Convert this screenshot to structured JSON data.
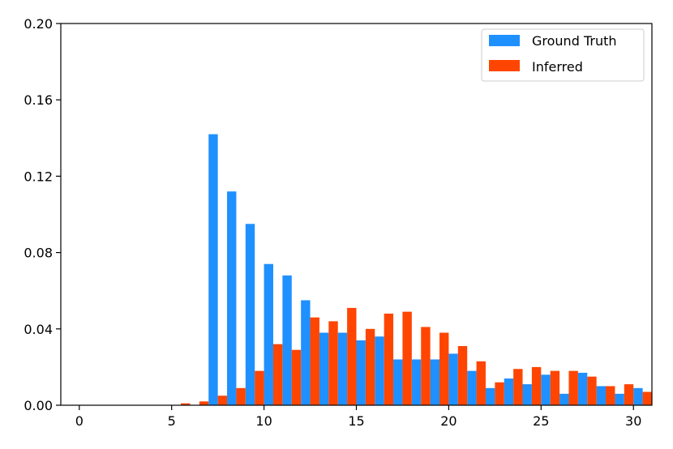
{
  "chart_data": {
    "type": "bar",
    "x": [
      5,
      6,
      7,
      8,
      9,
      10,
      11,
      12,
      13,
      14,
      15,
      16,
      17,
      18,
      19,
      20,
      21,
      22,
      23,
      24,
      25,
      26,
      27,
      28,
      29,
      30
    ],
    "series": [
      {
        "name": "Ground Truth",
        "color": "#1f90ff",
        "values": [
          0.0,
          0.0,
          0.142,
          0.112,
          0.095,
          0.074,
          0.068,
          0.055,
          0.038,
          0.038,
          0.034,
          0.036,
          0.024,
          0.024,
          0.024,
          0.027,
          0.018,
          0.009,
          0.014,
          0.011,
          0.016,
          0.006,
          0.017,
          0.01,
          0.006,
          0.009
        ]
      },
      {
        "name": "Inferred",
        "color": "#ff4500",
        "values": [
          0.001,
          0.002,
          0.005,
          0.009,
          0.018,
          0.032,
          0.029,
          0.046,
          0.044,
          0.051,
          0.04,
          0.048,
          0.049,
          0.041,
          0.038,
          0.031,
          0.023,
          0.012,
          0.019,
          0.02,
          0.018,
          0.018,
          0.015,
          0.01,
          0.011,
          0.007
        ]
      }
    ],
    "xlim": [
      -1,
      31
    ],
    "ylim": [
      0,
      0.2
    ],
    "xticks": [
      0,
      5,
      10,
      15,
      20,
      25,
      30
    ],
    "xtick_labels": [
      "0",
      "5",
      "10",
      "15",
      "20",
      "25",
      "30"
    ],
    "yticks": [
      0,
      0.04,
      0.08,
      0.12,
      0.16,
      0.2
    ],
    "ytick_labels": [
      "0.00",
      "0.04",
      "0.08",
      "0.12",
      "0.16",
      "0.20"
    ],
    "grid": false,
    "legend": "top-right",
    "title": "",
    "xlabel": "",
    "ylabel": ""
  }
}
